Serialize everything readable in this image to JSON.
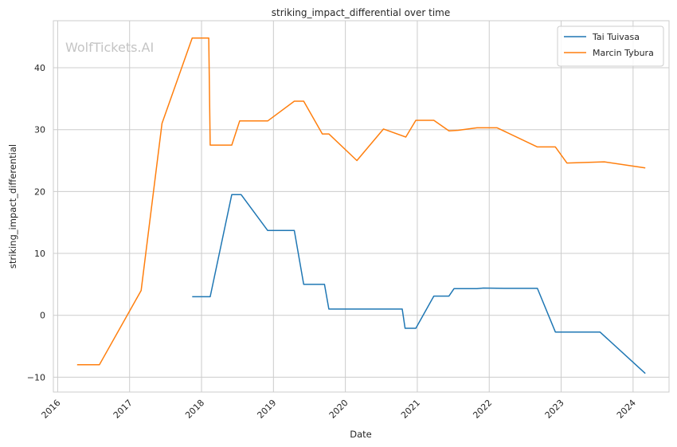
{
  "chart_data": {
    "type": "line",
    "title": "striking_impact_differential over time",
    "xlabel": "Date",
    "ylabel": "striking_impact_differential",
    "watermark": "WolfTickets.AI",
    "xlim": [
      2015.94,
      2024.5
    ],
    "ylim": [
      -12.4,
      47.6
    ],
    "x_ticks": [
      2016,
      2017,
      2018,
      2019,
      2020,
      2021,
      2022,
      2023,
      2024
    ],
    "x_tick_labels": [
      "2016",
      "2017",
      "2018",
      "2019",
      "2020",
      "2021",
      "2022",
      "2023",
      "2024"
    ],
    "y_ticks": [
      -10,
      0,
      10,
      20,
      30,
      40
    ],
    "y_tick_labels": [
      "−10",
      "0",
      "10",
      "20",
      "30",
      "40"
    ],
    "grid": true,
    "legend_position": "top-right",
    "series": [
      {
        "name": "Tai Tuivasa",
        "color": "#1f77b4",
        "points": [
          [
            2017.87,
            3.0
          ],
          [
            2018.12,
            3.0
          ],
          [
            2018.42,
            19.5
          ],
          [
            2018.55,
            19.5
          ],
          [
            2018.92,
            13.7
          ],
          [
            2019.29,
            13.7
          ],
          [
            2019.42,
            5.0
          ],
          [
            2019.71,
            5.0
          ],
          [
            2019.77,
            1.0
          ],
          [
            2020.79,
            1.0
          ],
          [
            2020.83,
            -2.1
          ],
          [
            2020.98,
            -2.1
          ],
          [
            2021.23,
            3.1
          ],
          [
            2021.44,
            3.1
          ],
          [
            2021.51,
            4.3
          ],
          [
            2021.83,
            4.3
          ],
          [
            2021.92,
            4.4
          ],
          [
            2022.21,
            4.35
          ],
          [
            2022.67,
            4.35
          ],
          [
            2022.92,
            -2.7
          ],
          [
            2023.33,
            -2.7
          ],
          [
            2023.54,
            -2.7
          ],
          [
            2024.17,
            -9.4
          ]
        ]
      },
      {
        "name": "Marcin Tybura",
        "color": "#ff7f0e",
        "points": [
          [
            2016.27,
            -8.0
          ],
          [
            2016.58,
            -8.0
          ],
          [
            2017.16,
            4.0
          ],
          [
            2017.45,
            31.0
          ],
          [
            2017.87,
            44.8
          ],
          [
            2018.1,
            44.8
          ],
          [
            2018.12,
            27.5
          ],
          [
            2018.42,
            27.5
          ],
          [
            2018.53,
            31.4
          ],
          [
            2018.92,
            31.4
          ],
          [
            2019.29,
            34.6
          ],
          [
            2019.42,
            34.6
          ],
          [
            2019.68,
            29.3
          ],
          [
            2019.77,
            29.3
          ],
          [
            2020.16,
            25.0
          ],
          [
            2020.53,
            30.1
          ],
          [
            2020.84,
            28.8
          ],
          [
            2020.98,
            31.5
          ],
          [
            2021.23,
            31.5
          ],
          [
            2021.44,
            29.8
          ],
          [
            2021.57,
            29.9
          ],
          [
            2021.83,
            30.3
          ],
          [
            2022.11,
            30.3
          ],
          [
            2022.67,
            27.2
          ],
          [
            2022.92,
            27.2
          ],
          [
            2023.08,
            24.6
          ],
          [
            2023.6,
            24.8
          ],
          [
            2024.17,
            23.8
          ]
        ]
      }
    ]
  }
}
